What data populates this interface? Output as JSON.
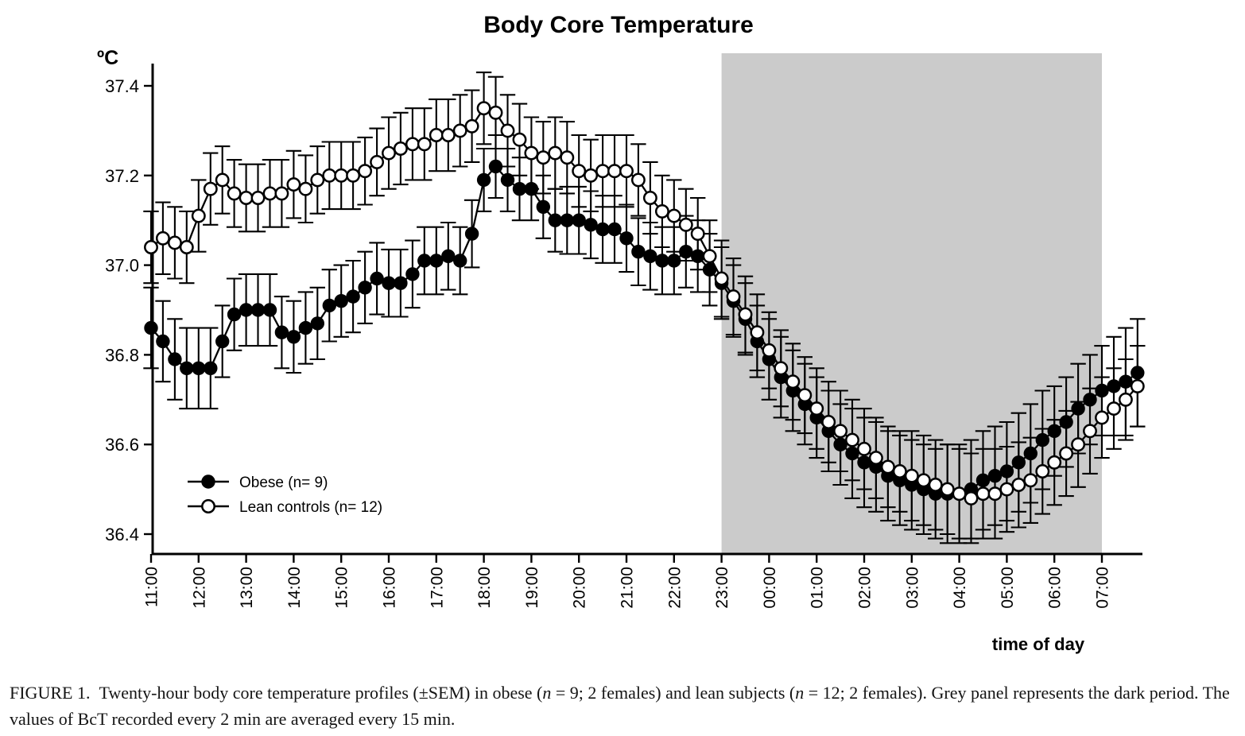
{
  "figure": {
    "title": "Body Core Temperature",
    "y_axis_unit": "ºC",
    "x_axis_label": "time of day",
    "legend": [
      {
        "label": "Obese (n= 9)",
        "marker": "filled-circle"
      },
      {
        "label": "Lean controls (n= 12)",
        "marker": "open-circle"
      }
    ]
  },
  "caption": {
    "segments": [
      {
        "text": "FIGURE 1.  Twenty-hour body core temperature profiles (±SEM) in obese (",
        "italic": false
      },
      {
        "text": "n",
        "italic": true
      },
      {
        "text": " = 9; 2 females) and lean subjects (",
        "italic": false
      },
      {
        "text": "n",
        "italic": true
      },
      {
        "text": " = 12; 2 females). Grey panel represents the dark period. The values of BcT recorded every 2 min are averaged every 15 min.",
        "italic": false
      }
    ]
  },
  "chart_data": {
    "type": "line",
    "title": "Body Core Temperature",
    "ylabel": "ºC",
    "xlabel": "time of day",
    "ylim": [
      36.35,
      37.45
    ],
    "y_ticks": [
      "37.4",
      "37.2",
      "37.0",
      "36.8",
      "36.6",
      "36.4"
    ],
    "x_tick_labels": [
      "11:00",
      "12:00",
      "13:00",
      "14:00",
      "15:00",
      "16:00",
      "17:00",
      "18:00",
      "19:00",
      "20:00",
      "21:00",
      "22:00",
      "23:00",
      "00:00",
      "01:00",
      "02:00",
      "03:00",
      "04:00",
      "05:00",
      "06:00",
      "07:00"
    ],
    "x_start": "11:00",
    "x_end": "07:45",
    "interval_minutes": 15,
    "n_points": 84,
    "error_bars": "±SEM, both directions, capped",
    "grid": false,
    "legend_position": "inside-lower-left",
    "dark_period": {
      "start": "23:00",
      "end": "07:00",
      "color": "#cbcbcb"
    },
    "colors": {
      "foreground": "#000000",
      "background": "#ffffff"
    },
    "series": [
      {
        "name": "Obese (n= 9)",
        "name_slug": "obese",
        "marker": "filled-circle",
        "values": [
          36.86,
          36.83,
          36.79,
          36.77,
          36.77,
          36.77,
          36.83,
          36.89,
          36.9,
          36.9,
          36.9,
          36.85,
          36.84,
          36.86,
          36.87,
          36.91,
          36.92,
          36.93,
          36.95,
          36.97,
          36.96,
          36.96,
          36.98,
          37.01,
          37.01,
          37.02,
          37.01,
          37.07,
          37.19,
          37.22,
          37.19,
          37.17,
          37.17,
          37.13,
          37.1,
          37.1,
          37.1,
          37.09,
          37.08,
          37.08,
          37.06,
          37.03,
          37.02,
          37.01,
          37.01,
          37.03,
          37.02,
          36.99,
          36.96,
          36.92,
          36.88,
          36.83,
          36.79,
          36.75,
          36.72,
          36.69,
          36.66,
          36.63,
          36.6,
          36.58,
          36.56,
          36.55,
          36.53,
          36.52,
          36.51,
          36.5,
          36.49,
          36.49,
          36.49,
          36.5,
          36.52,
          36.53,
          36.54,
          36.56,
          36.58,
          36.61,
          36.63,
          36.65,
          36.68,
          36.7,
          36.72,
          36.73,
          36.74,
          36.76
        ],
        "sem": [
          0.09,
          0.09,
          0.09,
          0.09,
          0.09,
          0.09,
          0.08,
          0.08,
          0.08,
          0.08,
          0.08,
          0.08,
          0.08,
          0.08,
          0.08,
          0.08,
          0.08,
          0.08,
          0.08,
          0.08,
          0.075,
          0.075,
          0.075,
          0.075,
          0.075,
          0.075,
          0.075,
          0.075,
          0.07,
          0.07,
          0.07,
          0.07,
          0.07,
          0.07,
          0.07,
          0.075,
          0.075,
          0.075,
          0.075,
          0.075,
          0.075,
          0.075,
          0.075,
          0.075,
          0.075,
          0.08,
          0.08,
          0.08,
          0.08,
          0.08,
          0.08,
          0.08,
          0.09,
          0.09,
          0.09,
          0.09,
          0.09,
          0.09,
          0.09,
          0.1,
          0.1,
          0.1,
          0.1,
          0.1,
          0.1,
          0.1,
          0.1,
          0.11,
          0.11,
          0.11,
          0.11,
          0.11,
          0.11,
          0.11,
          0.11,
          0.11,
          0.1,
          0.1,
          0.1,
          0.1,
          0.1,
          0.11,
          0.12,
          0.12
        ]
      },
      {
        "name": "Lean controls (n= 12)",
        "name_slug": "lean-controls",
        "marker": "open-circle",
        "values": [
          37.04,
          37.06,
          37.05,
          37.04,
          37.11,
          37.17,
          37.19,
          37.16,
          37.15,
          37.15,
          37.16,
          37.16,
          37.18,
          37.17,
          37.19,
          37.2,
          37.2,
          37.2,
          37.21,
          37.23,
          37.25,
          37.26,
          37.27,
          37.27,
          37.29,
          37.29,
          37.3,
          37.31,
          37.35,
          37.34,
          37.3,
          37.28,
          37.25,
          37.24,
          37.25,
          37.24,
          37.21,
          37.2,
          37.21,
          37.21,
          37.21,
          37.19,
          37.15,
          37.12,
          37.11,
          37.09,
          37.07,
          37.02,
          36.97,
          36.93,
          36.89,
          36.85,
          36.81,
          36.77,
          36.74,
          36.71,
          36.68,
          36.65,
          36.63,
          36.61,
          36.59,
          36.57,
          36.55,
          36.54,
          36.53,
          36.52,
          36.51,
          36.5,
          36.49,
          36.48,
          36.49,
          36.49,
          36.5,
          36.51,
          36.52,
          36.54,
          36.56,
          36.58,
          36.6,
          36.63,
          36.66,
          36.68,
          36.7,
          36.73
        ],
        "sem": [
          0.08,
          0.08,
          0.08,
          0.08,
          0.08,
          0.08,
          0.075,
          0.075,
          0.075,
          0.075,
          0.075,
          0.075,
          0.075,
          0.075,
          0.075,
          0.075,
          0.075,
          0.075,
          0.075,
          0.075,
          0.08,
          0.08,
          0.08,
          0.08,
          0.08,
          0.08,
          0.08,
          0.08,
          0.08,
          0.08,
          0.08,
          0.08,
          0.08,
          0.08,
          0.08,
          0.08,
          0.08,
          0.08,
          0.08,
          0.08,
          0.08,
          0.08,
          0.08,
          0.08,
          0.08,
          0.08,
          0.08,
          0.08,
          0.085,
          0.085,
          0.085,
          0.085,
          0.085,
          0.085,
          0.085,
          0.085,
          0.09,
          0.09,
          0.09,
          0.09,
          0.09,
          0.09,
          0.09,
          0.09,
          0.1,
          0.1,
          0.1,
          0.1,
          0.1,
          0.1,
          0.1,
          0.1,
          0.095,
          0.095,
          0.095,
          0.095,
          0.095,
          0.095,
          0.095,
          0.095,
          0.09,
          0.09,
          0.09,
          0.09
        ]
      }
    ]
  }
}
